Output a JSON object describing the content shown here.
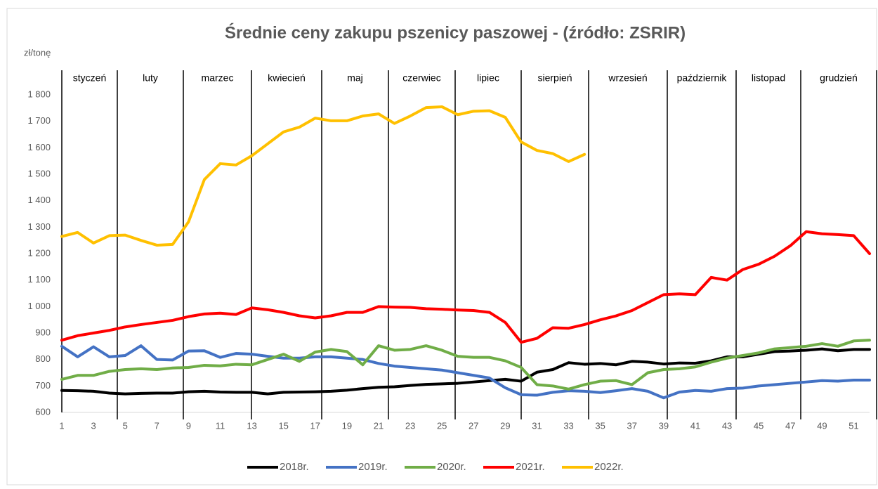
{
  "chart_data": {
    "type": "line",
    "title": "Średnie ceny zakupu pszenicy paszowej - (źródło: ZSRIR)",
    "y_label": "zł/tonę",
    "months": [
      "styczeń",
      "luty",
      "marzec",
      "kwiecień",
      "maj",
      "czerwiec",
      "lipiec",
      "sierpień",
      "wrzesień",
      "październik",
      "listopad",
      "grudzień"
    ],
    "x": [
      1,
      2,
      3,
      4,
      5,
      6,
      7,
      8,
      9,
      10,
      11,
      12,
      13,
      14,
      15,
      16,
      17,
      18,
      19,
      20,
      21,
      22,
      23,
      24,
      25,
      26,
      27,
      28,
      29,
      30,
      31,
      32,
      33,
      34,
      35,
      36,
      37,
      38,
      39,
      40,
      41,
      42,
      43,
      44,
      45,
      46,
      47,
      48,
      49,
      50,
      51,
      52
    ],
    "xlim": [
      1,
      52
    ],
    "xticks": [
      1,
      3,
      5,
      7,
      9,
      11,
      13,
      15,
      17,
      19,
      21,
      23,
      25,
      27,
      29,
      31,
      33,
      35,
      37,
      39,
      41,
      43,
      45,
      47,
      49,
      51
    ],
    "ylim": [
      600,
      1800
    ],
    "yticks": [
      {
        "value": 600,
        "label": "600"
      },
      {
        "value": 700,
        "label": "700"
      },
      {
        "value": 800,
        "label": "800"
      },
      {
        "value": 900,
        "label": "900"
      },
      {
        "value": 1000,
        "label": "1 000"
      },
      {
        "value": 1100,
        "label": "1 100"
      },
      {
        "value": 1200,
        "label": "1 200"
      },
      {
        "value": 1300,
        "label": "1 300"
      },
      {
        "value": 1400,
        "label": "1 400"
      },
      {
        "value": 1500,
        "label": "1 500"
      },
      {
        "value": 1600,
        "label": "1 600"
      },
      {
        "value": 1700,
        "label": "1 700"
      },
      {
        "value": 1800,
        "label": "1 800"
      }
    ],
    "series": [
      {
        "name": "2018r.",
        "color": "#000000",
        "values": [
          683,
          682,
          680,
          673,
          670,
          672,
          673,
          673,
          678,
          680,
          677,
          676,
          676,
          670,
          676,
          677,
          678,
          680,
          684,
          690,
          695,
          697,
          702,
          706,
          708,
          710,
          715,
          720,
          725,
          718,
          752,
          762,
          788,
          782,
          785,
          780,
          793,
          790,
          783,
          787,
          786,
          795,
          810,
          810,
          820,
          830,
          832,
          835,
          840,
          833,
          838,
          838
        ]
      },
      {
        "name": "2019r.",
        "color": "#4472c4",
        "values": [
          850,
          810,
          848,
          810,
          815,
          852,
          800,
          798,
          832,
          833,
          808,
          823,
          820,
          812,
          805,
          805,
          810,
          810,
          805,
          800,
          785,
          775,
          770,
          765,
          760,
          750,
          740,
          730,
          693,
          667,
          665,
          676,
          682,
          680,
          675,
          682,
          690,
          680,
          655,
          677,
          683,
          680,
          690,
          692,
          700,
          705,
          710,
          715,
          720,
          718,
          722,
          722
        ]
      },
      {
        "name": "2020r.",
        "color": "#70ad47",
        "values": [
          725,
          740,
          740,
          755,
          762,
          765,
          762,
          768,
          770,
          778,
          776,
          782,
          780,
          800,
          820,
          793,
          828,
          838,
          830,
          780,
          852,
          835,
          838,
          852,
          835,
          812,
          808,
          808,
          795,
          770,
          705,
          700,
          688,
          705,
          718,
          720,
          705,
          750,
          762,
          765,
          772,
          790,
          805,
          815,
          825,
          840,
          845,
          850,
          860,
          850,
          870,
          873
        ]
      },
      {
        "name": "2021r.",
        "color": "#ff0000",
        "values": [
          873,
          890,
          900,
          910,
          923,
          932,
          940,
          948,
          962,
          972,
          975,
          970,
          995,
          988,
          978,
          965,
          957,
          965,
          978,
          978,
          1000,
          998,
          997,
          992,
          990,
          987,
          985,
          978,
          940,
          865,
          880,
          920,
          918,
          932,
          950,
          965,
          985,
          1015,
          1045,
          1048,
          1045,
          1110,
          1100,
          1140,
          1160,
          1190,
          1230,
          1283,
          1275,
          1272,
          1268,
          1200
        ]
      },
      {
        "name": "2022r.",
        "color": "#ffc000",
        "values": [
          1265,
          1280,
          1240,
          1268,
          1270,
          1250,
          1232,
          1235,
          1320,
          1480,
          1540,
          1535,
          1570,
          1615,
          1660,
          1678,
          1712,
          1702,
          1702,
          1720,
          1728,
          1692,
          1720,
          1752,
          1755,
          1725,
          1738,
          1740,
          1715,
          1622,
          1590,
          1578,
          1548,
          1575,
          null,
          null,
          null,
          null,
          null,
          null,
          null,
          null,
          null,
          null,
          null,
          null,
          null,
          null,
          null,
          null,
          null,
          null
        ]
      }
    ]
  }
}
